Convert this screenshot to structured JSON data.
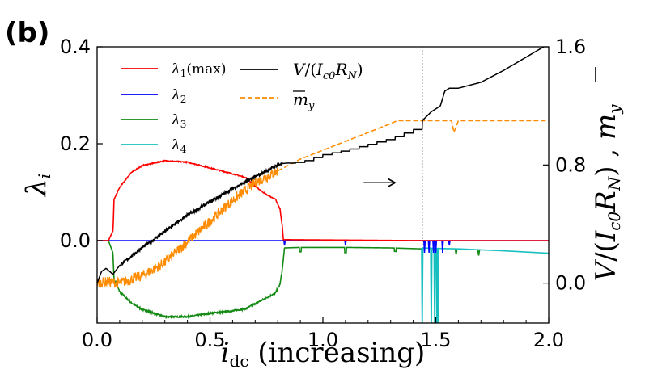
{
  "panel_label": "(b)",
  "chart_data": {
    "type": "line",
    "title": "",
    "xlabel": "i_dc (increasing)",
    "ylabel_left": "λ_i",
    "ylabel_right": "V/(I_c0 R_N) , m_y",
    "xlim": [
      0.0,
      2.0
    ],
    "ylim_left": [
      -0.17,
      0.4
    ],
    "ylim_right": [
      -0.27,
      1.6
    ],
    "x_ticks": [
      "0.0",
      "0.5",
      "1.0",
      "1.5",
      "2.0"
    ],
    "y_ticks_left": [
      "0.0",
      "0.2",
      "0.4"
    ],
    "y_ticks_right": [
      "0.0",
      "0.8",
      "1.6"
    ],
    "vline_x": 1.44,
    "legend": {
      "lambda1": "λ1(max)",
      "lambda2": "λ2",
      "lambda3": "λ3",
      "lambda4": "λ4",
      "voltage": "V/(Ic0RN)",
      "my": "m_y"
    },
    "colors": {
      "lambda1": "#ff0000",
      "lambda2": "#0000ff",
      "lambda3": "#138a13",
      "lambda4": "#17bfbf",
      "voltage": "#000000",
      "my": "#ff8c00"
    },
    "series": [
      {
        "name": "lambda1",
        "axis": "left",
        "x": [
          0.0,
          0.05,
          0.06,
          0.07,
          0.072,
          0.075,
          0.1,
          0.15,
          0.2,
          0.3,
          0.4,
          0.5,
          0.6,
          0.66,
          0.7,
          0.75,
          0.79,
          0.81,
          0.82,
          0.825,
          1.44,
          2.0
        ],
        "y": [
          0.0,
          0.0,
          0.01,
          0.02,
          0.04,
          0.085,
          0.11,
          0.14,
          0.155,
          0.165,
          0.162,
          0.15,
          0.138,
          0.13,
          0.112,
          0.095,
          0.085,
          0.065,
          0.03,
          0.002,
          0.0,
          0.0
        ]
      },
      {
        "name": "lambda2",
        "axis": "left",
        "x": [
          0.0,
          2.0
        ],
        "y": [
          0.0,
          0.0
        ]
      },
      {
        "name": "lambda3",
        "axis": "left",
        "x": [
          0.0,
          0.05,
          0.07,
          0.075,
          0.1,
          0.15,
          0.2,
          0.3,
          0.4,
          0.5,
          0.6,
          0.66,
          0.7,
          0.75,
          0.79,
          0.81,
          0.82,
          0.83,
          0.9,
          1.1,
          1.3,
          1.44,
          1.6,
          1.8,
          2.0
        ],
        "y": [
          0.0,
          0.0,
          -0.025,
          -0.08,
          -0.105,
          -0.128,
          -0.142,
          -0.157,
          -0.157,
          -0.15,
          -0.145,
          -0.14,
          -0.13,
          -0.118,
          -0.108,
          -0.09,
          -0.06,
          -0.015,
          -0.014,
          -0.014,
          -0.015,
          -0.017,
          -0.017,
          -0.021,
          -0.026
        ]
      },
      {
        "name": "lambda4",
        "axis": "left",
        "x": [
          1.44,
          1.5,
          1.6,
          1.8,
          2.0
        ],
        "y": [
          -0.015,
          -0.016,
          -0.017,
          -0.021,
          -0.026
        ]
      },
      {
        "name": "voltage",
        "axis": "right",
        "x": [
          0.0,
          0.02,
          0.04,
          0.07,
          0.1,
          0.2,
          0.3,
          0.4,
          0.5,
          0.6,
          0.7,
          0.8,
          0.82,
          0.9,
          1.0,
          1.1,
          1.2,
          1.3,
          1.4,
          1.44,
          1.48,
          1.52,
          1.54,
          1.56,
          1.6,
          1.7,
          1.8,
          1.9,
          2.0
        ],
        "y": [
          0.0,
          0.08,
          0.1,
          0.06,
          0.12,
          0.24,
          0.35,
          0.46,
          0.55,
          0.64,
          0.72,
          0.8,
          0.81,
          0.82,
          0.87,
          0.9,
          0.94,
          0.98,
          1.04,
          1.1,
          1.16,
          1.2,
          1.3,
          1.32,
          1.32,
          1.36,
          1.44,
          1.53,
          1.62
        ]
      },
      {
        "name": "my",
        "axis": "right",
        "x": [
          0.0,
          0.05,
          0.1,
          0.2,
          0.3,
          0.4,
          0.5,
          0.6,
          0.7,
          0.8,
          0.9,
          1.0,
          1.1,
          1.2,
          1.3,
          1.33,
          1.44,
          1.57,
          1.58,
          1.6,
          2.0
        ],
        "y": [
          0.0,
          0.01,
          0.0,
          0.05,
          0.14,
          0.28,
          0.42,
          0.56,
          0.68,
          0.76,
          0.84,
          0.9,
          0.96,
          1.02,
          1.08,
          1.1,
          1.1,
          1.1,
          1.02,
          1.1,
          1.1
        ]
      }
    ],
    "annotation_arrow": {
      "x_start": 1.18,
      "x_end": 1.32,
      "y_right": 0.68
    }
  }
}
